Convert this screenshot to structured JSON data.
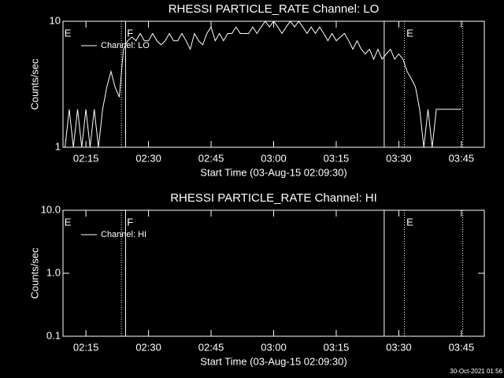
{
  "chart_data": [
    {
      "type": "line",
      "title": "RHESSI PARTICLE_RATE Channel: LO",
      "xlabel": "Start Time (03-Aug-15 02:09:30)",
      "ylabel": "Counts/sec",
      "log_y": true,
      "xlim": [
        "02:09:30",
        "03:50:30"
      ],
      "ylim": [
        1,
        10
      ],
      "yticks": [
        1,
        10
      ],
      "xticks": [
        "02:15",
        "02:30",
        "02:45",
        "03:00",
        "03:15",
        "03:30",
        "03:45"
      ],
      "x": [
        "02:10",
        "02:11",
        "02:12",
        "02:13",
        "02:14",
        "02:15",
        "02:16",
        "02:17",
        "02:18",
        "02:19",
        "02:20",
        "02:21",
        "02:22",
        "02:23",
        "02:24",
        "02:25",
        "02:26",
        "02:27",
        "02:28",
        "02:29",
        "02:30",
        "02:31",
        "02:32",
        "02:33",
        "02:34",
        "02:35",
        "02:36",
        "02:37",
        "02:38",
        "02:39",
        "02:40",
        "02:41",
        "02:42",
        "02:43",
        "02:44",
        "02:45",
        "02:46",
        "02:47",
        "02:48",
        "02:49",
        "02:50",
        "02:51",
        "02:52",
        "02:53",
        "02:54",
        "02:55",
        "02:56",
        "02:57",
        "02:58",
        "02:59",
        "03:00",
        "03:01",
        "03:02",
        "03:03",
        "03:04",
        "03:05",
        "03:06",
        "03:07",
        "03:08",
        "03:09",
        "03:10",
        "03:11",
        "03:12",
        "03:13",
        "03:14",
        "03:15",
        "03:16",
        "03:17",
        "03:18",
        "03:19",
        "03:20",
        "03:21",
        "03:22",
        "03:23",
        "03:24",
        "03:25",
        "03:26",
        "03:27",
        "03:28",
        "03:29",
        "03:30",
        "03:31",
        "03:32",
        "03:33",
        "03:34",
        "03:35",
        "03:36",
        "03:37",
        "03:38",
        "03:39",
        "03:40",
        "03:41",
        "03:42",
        "03:43",
        "03:44",
        "03:45"
      ],
      "series": [
        {
          "name": "Channel: LO",
          "color": "#ffffff",
          "values": [
            1,
            2,
            1,
            2,
            1,
            2,
            1,
            2,
            1,
            2,
            3,
            4,
            3,
            2.5,
            6,
            7,
            7.5,
            7,
            8,
            7,
            7,
            8,
            7,
            6.5,
            7,
            8,
            7,
            7,
            8,
            7,
            6,
            8,
            7,
            6.5,
            8,
            9,
            7,
            8,
            7,
            8,
            8,
            9,
            8,
            8,
            8,
            9,
            8,
            9,
            10,
            9,
            10,
            9,
            8,
            9,
            10,
            9,
            10,
            9,
            8,
            9,
            8,
            9,
            8,
            7,
            8,
            7,
            7.5,
            8,
            7,
            6,
            7,
            6,
            5.5,
            6,
            5,
            6,
            5,
            5.5,
            6,
            5,
            5.5,
            5,
            4,
            3.5,
            3,
            2,
            1,
            2,
            1,
            2,
            2,
            2,
            2,
            2,
            2,
            2
          ]
        }
      ],
      "markers": [
        {
          "x": "02:23:30",
          "style": "dotted"
        },
        {
          "x": "02:24:30",
          "style": "solid"
        },
        {
          "x": "03:26:30",
          "style": "solid"
        },
        {
          "x": "03:31:20",
          "style": "dotted"
        },
        {
          "x": "03:45:20",
          "style": "dotted"
        }
      ],
      "annotations": [
        {
          "text": "E",
          "x": "02:09:50"
        },
        {
          "text": "F",
          "x": "02:24:50"
        },
        {
          "text": "E",
          "x": "03:31:50"
        }
      ]
    },
    {
      "type": "line",
      "title": "RHESSI PARTICLE_RATE Channel: HI",
      "xlabel": "Start Time (03-Aug-15 02:09:30)",
      "ylabel": "Counts/sec",
      "log_y": true,
      "xlim": [
        "02:09:30",
        "03:50:30"
      ],
      "ylim": [
        0.1,
        10
      ],
      "yticks": [
        0.1,
        {
          "value": 1,
          "label": "1.0"
        },
        {
          "value": 10,
          "label": "10.0"
        }
      ],
      "xticks": [
        "02:15",
        "02:30",
        "02:45",
        "03:00",
        "03:15",
        "03:30",
        "03:45"
      ],
      "x": [],
      "series": [
        {
          "name": "Channel: HI",
          "color": "#ffffff",
          "values": []
        }
      ],
      "markers": [
        {
          "x": "02:23:30",
          "style": "dotted"
        },
        {
          "x": "02:24:30",
          "style": "solid"
        },
        {
          "x": "03:26:30",
          "style": "solid"
        },
        {
          "x": "03:31:20",
          "style": "dotted"
        },
        {
          "x": "03:45:20",
          "style": "dotted"
        }
      ],
      "annotations": [
        {
          "text": "E",
          "x": "02:09:50"
        },
        {
          "text": "F",
          "x": "02:24:50"
        },
        {
          "text": "E",
          "x": "03:31:50"
        }
      ]
    }
  ],
  "footer": "30-Oct-2021 01:56"
}
